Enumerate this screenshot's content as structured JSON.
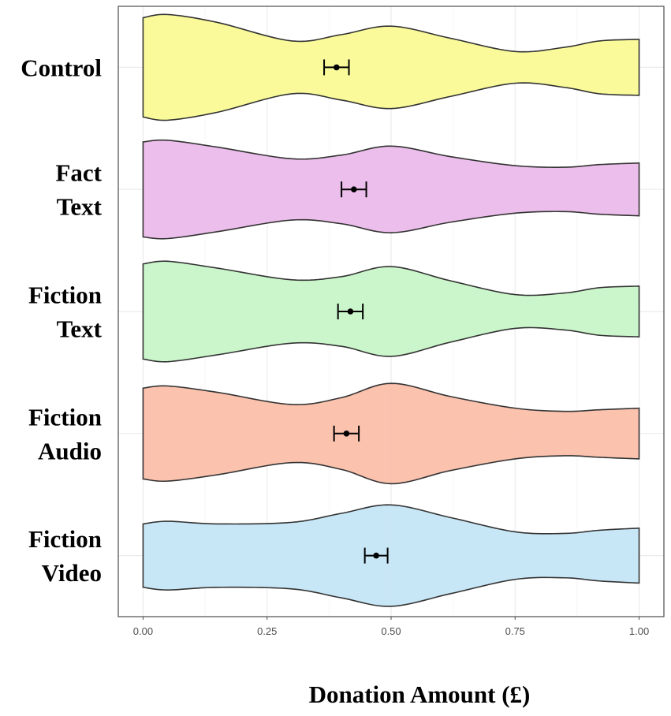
{
  "chart_data": {
    "type": "violin",
    "xlabel": "Donation Amount (£)",
    "ylabel": "",
    "xlim": [
      -0.05,
      1.05
    ],
    "xticks": [
      "0.00",
      "0.25",
      "0.50",
      "0.75",
      "1.00"
    ],
    "xtick_values": [
      0,
      0.25,
      0.5,
      0.75,
      1
    ],
    "grid": true,
    "groups": [
      {
        "label_lines": [
          "Control"
        ],
        "color": "#fafa96",
        "mean": 0.39,
        "ci": [
          0.365,
          0.415
        ],
        "density": [
          [
            0.0,
            0.94
          ],
          [
            0.05,
            1.0
          ],
          [
            0.15,
            0.85
          ],
          [
            0.3,
            0.5
          ],
          [
            0.4,
            0.62
          ],
          [
            0.5,
            0.78
          ],
          [
            0.62,
            0.55
          ],
          [
            0.75,
            0.3
          ],
          [
            0.85,
            0.38
          ],
          [
            0.92,
            0.5
          ],
          [
            1.0,
            0.53
          ]
        ]
      },
      {
        "label_lines": [
          "Fact",
          "Text"
        ],
        "color": "#ebbbea",
        "mean": 0.425,
        "ci": [
          0.4,
          0.45
        ],
        "density": [
          [
            0.0,
            0.9
          ],
          [
            0.05,
            0.93
          ],
          [
            0.15,
            0.8
          ],
          [
            0.3,
            0.58
          ],
          [
            0.4,
            0.65
          ],
          [
            0.5,
            0.82
          ],
          [
            0.62,
            0.62
          ],
          [
            0.75,
            0.45
          ],
          [
            0.85,
            0.42
          ],
          [
            0.92,
            0.47
          ],
          [
            1.0,
            0.5
          ]
        ]
      },
      {
        "label_lines": [
          "Fiction",
          "Text"
        ],
        "color": "#c8f5c8",
        "mean": 0.418,
        "ci": [
          0.393,
          0.443
        ],
        "density": [
          [
            0.0,
            0.9
          ],
          [
            0.05,
            0.95
          ],
          [
            0.15,
            0.82
          ],
          [
            0.3,
            0.6
          ],
          [
            0.4,
            0.66
          ],
          [
            0.5,
            0.85
          ],
          [
            0.62,
            0.58
          ],
          [
            0.75,
            0.32
          ],
          [
            0.85,
            0.35
          ],
          [
            0.92,
            0.45
          ],
          [
            1.0,
            0.48
          ]
        ]
      },
      {
        "label_lines": [
          "Fiction",
          "Audio"
        ],
        "color": "#fbbfaa",
        "mean": 0.41,
        "ci": [
          0.385,
          0.435
        ],
        "density": [
          [
            0.0,
            0.86
          ],
          [
            0.05,
            0.9
          ],
          [
            0.15,
            0.78
          ],
          [
            0.3,
            0.55
          ],
          [
            0.4,
            0.68
          ],
          [
            0.5,
            0.95
          ],
          [
            0.62,
            0.7
          ],
          [
            0.75,
            0.48
          ],
          [
            0.85,
            0.42
          ],
          [
            0.92,
            0.45
          ],
          [
            1.0,
            0.48
          ]
        ]
      },
      {
        "label_lines": [
          "Fiction",
          "Video"
        ],
        "color": "#c5e6f5",
        "mean": 0.47,
        "ci": [
          0.447,
          0.493
        ],
        "density": [
          [
            0.0,
            0.6
          ],
          [
            0.05,
            0.65
          ],
          [
            0.15,
            0.6
          ],
          [
            0.3,
            0.63
          ],
          [
            0.4,
            0.8
          ],
          [
            0.5,
            0.96
          ],
          [
            0.62,
            0.72
          ],
          [
            0.75,
            0.45
          ],
          [
            0.85,
            0.42
          ],
          [
            0.92,
            0.48
          ],
          [
            1.0,
            0.52
          ]
        ]
      }
    ]
  }
}
